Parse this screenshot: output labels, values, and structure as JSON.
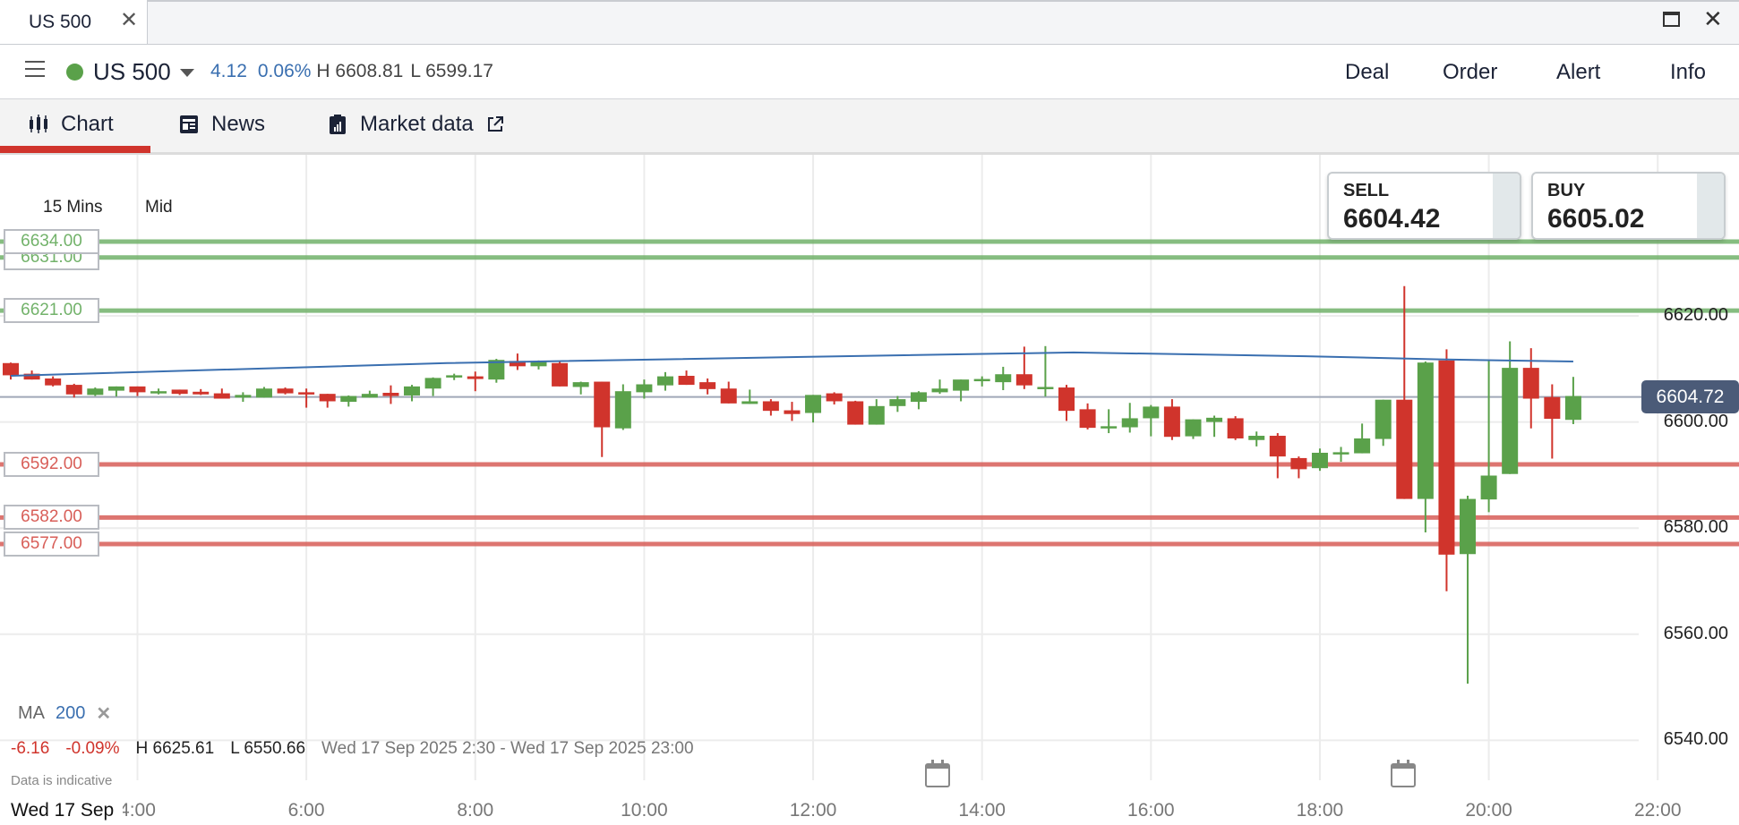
{
  "window": {
    "tab_title": "US 500",
    "close_icon": "close-icon",
    "maximize_icon": "maximize-icon"
  },
  "header": {
    "market": "US 500",
    "status_color": "#5aa14a",
    "change": "4.12",
    "change_pct": "0.06%",
    "high": "H 6608.81",
    "low": "L 6599.17",
    "actions": [
      "Deal",
      "Order",
      "Alert",
      "Info"
    ]
  },
  "subtabs": [
    {
      "label": "Chart",
      "icon": "candlestick-icon",
      "active": true
    },
    {
      "label": "News",
      "icon": "newspaper-icon"
    },
    {
      "label": "Market data",
      "icon": "clipboard-chart-icon",
      "external": "external-link-icon"
    }
  ],
  "chart": {
    "timeframe": "15 Mins",
    "price_type": "Mid",
    "sell": {
      "label": "SELL",
      "price": "6604.42"
    },
    "buy": {
      "label": "BUY",
      "price": "6605.02"
    },
    "current_price": "6604.72",
    "indicator": {
      "name": "MA",
      "period": "200",
      "color": "#3a6fb0"
    },
    "summary": {
      "change": "-6.16",
      "change_pct": "-0.09%",
      "high": "H 6625.61",
      "low": "L 6550.66",
      "range": "Wed 17 Sep 2025 2:30 - Wed 17 Sep 2025 23:00"
    },
    "disclaimer": "Data is indicative",
    "date_label": "Wed 17 Sep",
    "event_icons": [
      "calendar-icon",
      "calendar-icon"
    ]
  },
  "chart_data": {
    "type": "candlestick",
    "interval": "15 Mins",
    "ylim": [
      6535,
      6640
    ],
    "y_ticks": [
      "6620.00",
      "6600.00",
      "6580.00",
      "6560.00",
      "6540.00"
    ],
    "x_ticks": [
      "4:00",
      "6:00",
      "8:00",
      "10:00",
      "12:00",
      "14:00",
      "16:00",
      "18:00",
      "20:00",
      "22:00"
    ],
    "grid": true,
    "colors": {
      "up": "#5aa14a",
      "down": "#d0342c",
      "ma": "#3a6fb0",
      "support": "#d85e58",
      "resistance": "#72b26a"
    },
    "levels": [
      {
        "label": "6634.00",
        "value": 6634,
        "kind": "resistance"
      },
      {
        "label": "6631.00",
        "value": 6631,
        "kind": "resistance"
      },
      {
        "label": "6621.00",
        "value": 6621,
        "kind": "resistance"
      },
      {
        "label": "6592.00",
        "value": 6592,
        "kind": "support"
      },
      {
        "label": "6582.00",
        "value": 6582,
        "kind": "support"
      },
      {
        "label": "6577.00",
        "value": 6577,
        "kind": "support"
      }
    ],
    "ma_line": [
      [
        "02:30",
        6608.7
      ],
      [
        "07:40",
        6611.1
      ],
      [
        "12:45",
        6612.5
      ],
      [
        "15:05",
        6613.1
      ],
      [
        "17:50",
        6612.4
      ],
      [
        "19:25",
        6611.8
      ],
      [
        "21:00",
        6611.4
      ]
    ],
    "candles_columns": [
      "time",
      "open",
      "high",
      "low",
      "close"
    ],
    "candles": [
      [
        "02:30",
        6611.1,
        6611.2,
        6608.0,
        6608.8
      ],
      [
        "02:45",
        6609.1,
        6609.7,
        6608.0,
        6608.0
      ],
      [
        "03:00",
        6608.2,
        6608.6,
        6606.7,
        6606.9
      ],
      [
        "03:15",
        6607.0,
        6607.2,
        6604.6,
        6605.2
      ],
      [
        "03:30",
        6605.1,
        6606.5,
        6604.9,
        6606.3
      ],
      [
        "03:45",
        6605.9,
        6606.7,
        6604.8,
        6606.7
      ],
      [
        "04:00",
        6606.7,
        6606.7,
        6604.9,
        6605.6
      ],
      [
        "04:15",
        6605.4,
        6606.3,
        6605.2,
        6605.8
      ],
      [
        "04:30",
        6606.1,
        6606.1,
        6605.1,
        6605.3
      ],
      [
        "04:45",
        6605.7,
        6606.2,
        6605.1,
        6605.2
      ],
      [
        "05:00",
        6605.4,
        6606.3,
        6604.4,
        6604.4
      ],
      [
        "05:15",
        6604.6,
        6605.6,
        6603.8,
        6605.1
      ],
      [
        "05:30",
        6604.6,
        6606.6,
        6604.6,
        6606.3
      ],
      [
        "05:45",
        6606.3,
        6606.5,
        6605.2,
        6605.4
      ],
      [
        "06:00",
        6605.6,
        6606.3,
        6602.7,
        6605.2
      ],
      [
        "06:15",
        6605.3,
        6605.3,
        6602.7,
        6603.9
      ],
      [
        "06:30",
        6603.8,
        6605.0,
        6602.9,
        6604.9
      ],
      [
        "06:45",
        6604.6,
        6605.9,
        6604.6,
        6605.3
      ],
      [
        "07:00",
        6605.5,
        6606.9,
        6603.4,
        6604.9
      ],
      [
        "07:15",
        6605.0,
        6607.0,
        6603.9,
        6606.7
      ],
      [
        "07:30",
        6606.3,
        6608.4,
        6604.9,
        6608.3
      ],
      [
        "07:45",
        6608.5,
        6609.1,
        6607.9,
        6608.8
      ],
      [
        "08:00",
        6608.6,
        6609.5,
        6605.8,
        6608.1
      ],
      [
        "08:15",
        6608.0,
        6611.9,
        6607.4,
        6611.7
      ],
      [
        "08:30",
        6611.5,
        6612.9,
        6609.8,
        6610.5
      ],
      [
        "08:45",
        6610.5,
        6611.6,
        6609.9,
        6611.5
      ],
      [
        "09:00",
        6611.1,
        6611.4,
        6606.7,
        6606.7
      ],
      [
        "09:15",
        6606.6,
        6607.6,
        6605.2,
        6607.5
      ],
      [
        "09:30",
        6607.6,
        6607.6,
        6593.4,
        6599.0
      ],
      [
        "09:45",
        6598.8,
        6607.1,
        6598.5,
        6605.8
      ],
      [
        "10:00",
        6605.6,
        6608.0,
        6604.4,
        6607.1
      ],
      [
        "10:15",
        6606.9,
        6609.4,
        6605.9,
        6608.6
      ],
      [
        "10:30",
        6608.7,
        6609.7,
        6607.0,
        6607.0
      ],
      [
        "10:45",
        6607.5,
        6608.2,
        6605.2,
        6606.2
      ],
      [
        "11:00",
        6606.3,
        6607.6,
        6603.5,
        6603.5
      ],
      [
        "11:15",
        6603.4,
        6606.1,
        6603.4,
        6603.9
      ],
      [
        "11:30",
        6603.9,
        6604.3,
        6601.2,
        6602.1
      ],
      [
        "11:45",
        6602.2,
        6603.8,
        6600.2,
        6601.5
      ],
      [
        "12:00",
        6601.7,
        6605.1,
        6599.9,
        6605.1
      ],
      [
        "12:15",
        6605.4,
        6605.6,
        6603.3,
        6603.9
      ],
      [
        "12:30",
        6603.9,
        6604.0,
        6599.5,
        6599.5
      ],
      [
        "12:45",
        6599.5,
        6604.3,
        6599.5,
        6603.0
      ],
      [
        "13:00",
        6603.0,
        6604.9,
        6601.9,
        6604.3
      ],
      [
        "13:15",
        6603.8,
        6605.8,
        6602.4,
        6605.6
      ],
      [
        "13:30",
        6605.6,
        6608.0,
        6605.3,
        6606.3
      ],
      [
        "13:45",
        6605.9,
        6608.0,
        6603.9,
        6608.0
      ],
      [
        "14:00",
        6607.9,
        6608.6,
        6606.7,
        6608.1
      ],
      [
        "14:15",
        6607.5,
        6610.4,
        6606.0,
        6609.0
      ],
      [
        "14:30",
        6609.0,
        6614.2,
        6606.2,
        6606.9
      ],
      [
        "14:45",
        6606.2,
        6614.3,
        6604.8,
        6606.6
      ],
      [
        "15:00",
        6606.5,
        6607.0,
        6600.2,
        6602.1
      ],
      [
        "15:15",
        6602.4,
        6603.5,
        6598.6,
        6598.9
      ],
      [
        "15:30",
        6599.1,
        6602.4,
        6597.9,
        6599.2
      ],
      [
        "15:45",
        6599.0,
        6603.6,
        6598.0,
        6600.7
      ],
      [
        "16:00",
        6600.7,
        6603.2,
        6597.3,
        6602.9
      ],
      [
        "16:15",
        6602.9,
        6604.3,
        6596.6,
        6597.2
      ],
      [
        "16:30",
        6597.3,
        6600.5,
        6596.8,
        6600.5
      ],
      [
        "16:45",
        6600.0,
        6601.2,
        6597.2,
        6600.8
      ],
      [
        "17:00",
        6600.7,
        6601.1,
        6596.6,
        6596.9
      ],
      [
        "17:15",
        6596.6,
        6598.2,
        6595.4,
        6597.4
      ],
      [
        "17:30",
        6597.4,
        6597.9,
        6589.4,
        6593.5
      ],
      [
        "17:45",
        6593.2,
        6593.5,
        6589.4,
        6591.1
      ],
      [
        "18:00",
        6591.3,
        6595.0,
        6590.8,
        6594.2
      ],
      [
        "18:15",
        6594.0,
        6595.3,
        6592.5,
        6594.3
      ],
      [
        "18:30",
        6594.1,
        6599.7,
        6594.1,
        6596.9
      ],
      [
        "18:45",
        6596.8,
        6604.2,
        6595.5,
        6604.2
      ],
      [
        "19:00",
        6604.2,
        6625.6,
        6585.5,
        6585.5
      ],
      [
        "19:15",
        6585.5,
        6611.4,
        6579.2,
        6611.2
      ],
      [
        "19:30",
        6611.6,
        6613.7,
        6568.1,
        6575.0
      ],
      [
        "19:45",
        6575.1,
        6586.1,
        6550.7,
        6585.5
      ],
      [
        "20:00",
        6585.4,
        6611.5,
        6583.0,
        6589.9
      ],
      [
        "20:15",
        6590.2,
        6615.2,
        6590.2,
        6610.2
      ],
      [
        "20:30",
        6610.2,
        6613.9,
        6598.8,
        6604.4
      ],
      [
        "20:45",
        6604.7,
        6607.1,
        6593.1,
        6600.6
      ],
      [
        "21:00",
        6600.4,
        6608.5,
        6599.6,
        6604.9
      ]
    ]
  }
}
